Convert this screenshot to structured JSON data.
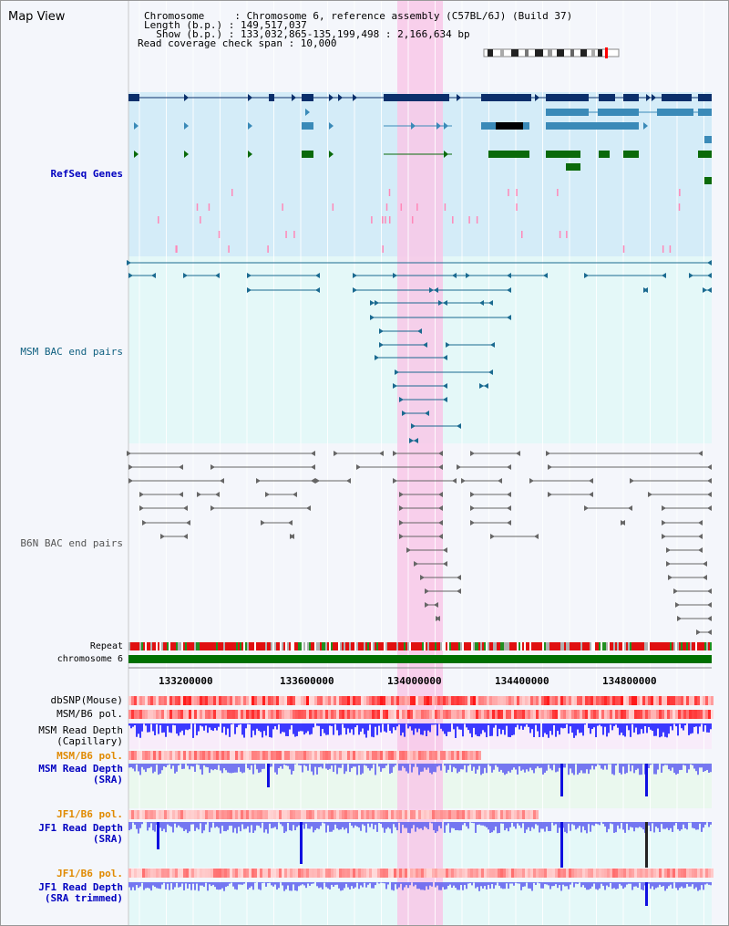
{
  "header": {
    "title": "Map View",
    "chromosome_line": "Chromosome     : Chromosome 6, reference assembly (C57BL/6J) (Build 37)",
    "length_line": "Length (b.p.) : 149,517,037",
    "show_line": "  Show (b.p.) : 133,032,865-135,199,498 : 2,166,634 bp",
    "coverage_line": "Read coverage check span : 10,000"
  },
  "tracks": {
    "refseq": "RefSeq Genes",
    "msm_bac": "MSM BAC end pairs",
    "b6n_bac": "B6N BAC end pairs",
    "repeat": "Repeat",
    "chromosome": "chromosome 6",
    "dbsnp": "dbSNP(Mouse)",
    "msm_b6_pol_1": "MSM/B6 pol.",
    "msm_read_depth_cap": "MSM Read Depth\n(Capillary)",
    "msm_b6_pol_2": "MSM/B6 pol.",
    "msm_read_depth_sra": "MSM Read Depth\n(SRA)",
    "jf1_b6_pol_1": "JF1/B6 pol.",
    "jf1_read_depth_sra": "JF1 Read Depth\n(SRA)",
    "jf1_b6_pol_2": "JF1/B6 pol.",
    "jf1_read_depth_trim": "JF1 Read Depth\n(SRA trimmed)"
  },
  "axis": {
    "ticks": [
      "133200000",
      "133600000",
      "134000000",
      "134400000",
      "134800000"
    ]
  },
  "colors": {
    "highlight": "#f8c8e8",
    "refseq_bg": "#d4ecf8",
    "msm_bg": "#e4f8f8",
    "gene_dark": "#0b2f6b",
    "gene_mid": "#3a8ab8",
    "gene_green": "#0a6a0a",
    "chromosome": "#007000",
    "depth_blue": "#3030e0"
  }
}
